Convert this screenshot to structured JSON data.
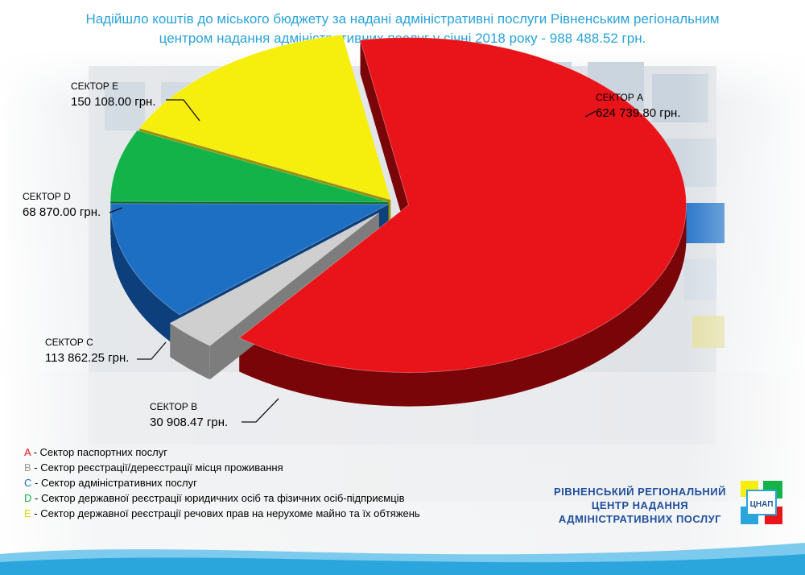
{
  "header": {
    "title_line1": "Надійшло коштів до міського бюджету за надані адміністративні послуги Рівненським регіональним",
    "title_line2": "центром надання адміністративних послуг у січні 2018 року - 988 488.52 грн."
  },
  "chart_data": {
    "type": "pie",
    "title": "Надійшло коштів до міського бюджету за надані адміністративні послуги Рівненським регіональним центром надання адміністративних послуг у січні 2018 року - 988 488.52 грн.",
    "slices": [
      {
        "key": "A",
        "label": "СЕКТОР А",
        "value": 624739.8,
        "value_text": "624 739.80 грн.",
        "color": "#e8141a",
        "side": "#7a0509"
      },
      {
        "key": "B",
        "label": "СЕКТОР В",
        "value": 30908.47,
        "value_text": "30 908.47 грн.",
        "color": "#cfcfcf",
        "side": "#7d7d7d"
      },
      {
        "key": "C",
        "label": "СЕКТОР С",
        "value": 113862.25,
        "value_text": "113 862.25 грн.",
        "color": "#1d6fc4",
        "side": "#0c3f7c"
      },
      {
        "key": "D",
        "label": "СЕКТОР D",
        "value": 68870.0,
        "value_text": "68 870.00 грн.",
        "color": "#14b34a",
        "side": "#0a6a2a"
      },
      {
        "key": "E",
        "label": "СЕКТОР Е",
        "value": 150108.0,
        "value_text": "150 108.00 грн.",
        "color": "#f6ee0c",
        "side": "#9a9100"
      }
    ],
    "total": 988488.52
  },
  "legend": [
    {
      "key": "A",
      "text": " - Сектор паспортних послуг",
      "color": "#e8141a"
    },
    {
      "key": "B",
      "text": " - Сектор реєстрації/дереєстрації місця проживання",
      "color": "#9a9a9a"
    },
    {
      "key": "C",
      "text": " - Сектор адміністративних послуг",
      "color": "#1d6fc4"
    },
    {
      "key": "D",
      "text": " - Сектор державної реєстрації юридичних осіб та фізичних осіб-підприємців",
      "color": "#14b34a"
    },
    {
      "key": "E",
      "text": " - Сектор державної реєстрації речових прав на нерухоме майно та їх обтяжень",
      "color": "#e6d800"
    }
  ],
  "org": {
    "line1": "РІВНЕНСЬКИЙ РЕГІОНАЛЬНИЙ",
    "line2": "ЦЕНТР НАДАННЯ",
    "line3": "АДМІНІСТРАТИВНИХ ПОСЛУГ",
    "logo_text": "ЦНАП"
  }
}
